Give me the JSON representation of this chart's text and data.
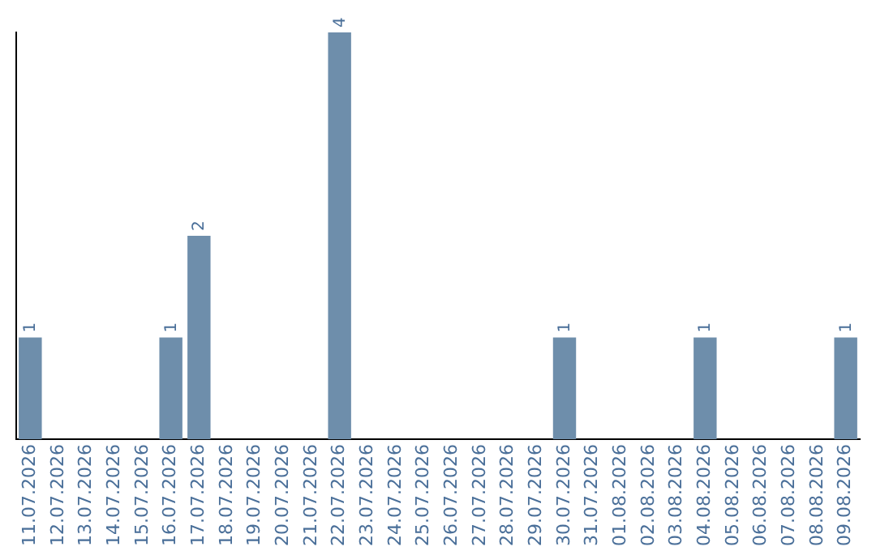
{
  "chart_data": {
    "type": "bar",
    "categories": [
      "11.07.2026",
      "12.07.2026",
      "13.07.2026",
      "14.07.2026",
      "15.07.2026",
      "16.07.2026",
      "17.07.2026",
      "18.07.2026",
      "19.07.2026",
      "20.07.2026",
      "21.07.2026",
      "22.07.2026",
      "23.07.2026",
      "24.07.2026",
      "25.07.2026",
      "26.07.2026",
      "27.07.2026",
      "28.07.2026",
      "29.07.2026",
      "30.07.2026",
      "31.07.2026",
      "01.08.2026",
      "02.08.2026",
      "03.08.2026",
      "04.08.2026",
      "05.08.2026",
      "06.08.2026",
      "07.08.2026",
      "08.08.2026",
      "09.08.2026"
    ],
    "values": [
      1,
      0,
      0,
      0,
      0,
      1,
      2,
      0,
      0,
      0,
      0,
      4,
      0,
      0,
      0,
      0,
      0,
      0,
      0,
      1,
      0,
      0,
      0,
      0,
      1,
      0,
      0,
      0,
      0,
      1
    ],
    "value_labels": [
      "1",
      null,
      null,
      null,
      null,
      "1",
      "2",
      null,
      null,
      null,
      null,
      "4",
      null,
      null,
      null,
      null,
      null,
      null,
      null,
      "1",
      null,
      null,
      null,
      null,
      "1",
      null,
      null,
      null,
      null,
      "1"
    ],
    "color": "#6e8eab",
    "tick_labels": "x",
    "grid": false,
    "legend": false
  }
}
